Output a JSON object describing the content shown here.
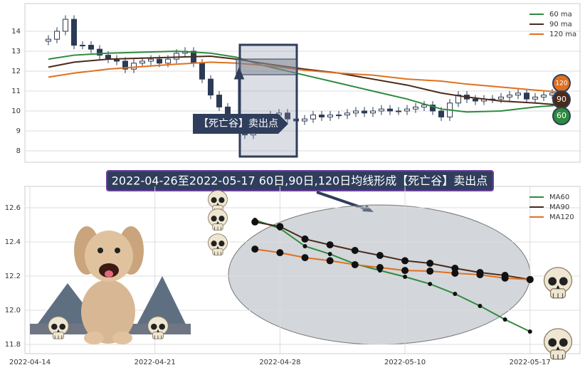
{
  "chart_data": [
    {
      "type": "candlestick",
      "xlim": [
        -2.75,
        62.25
      ],
      "ylim": [
        7.43,
        15.39
      ],
      "yticks": [
        8,
        9,
        10,
        11,
        12,
        13,
        14
      ],
      "grid": true,
      "legend": "upper right",
      "up_color": "#ffffff",
      "down_color": "#2b3a55",
      "open": [
        13.5,
        13.6,
        14.0,
        14.6,
        13.3,
        13.3,
        13.1,
        12.8,
        12.6,
        12.5,
        12.1,
        12.4,
        12.5,
        12.6,
        12.4,
        12.6,
        12.9,
        13.0,
        12.4,
        11.6,
        10.8,
        10.2,
        9.6,
        9.2,
        8.8,
        9.3,
        9.6,
        9.8,
        9.9,
        9.6,
        9.5,
        9.6,
        9.8,
        9.7,
        9.8,
        9.8,
        9.9,
        10.0,
        9.9,
        10.0,
        10.1,
        10.0,
        10.0,
        10.1,
        10.2,
        10.3,
        10.0,
        9.7,
        10.4,
        10.8,
        10.6,
        10.5,
        10.6,
        10.6,
        10.7,
        10.8,
        10.9,
        10.6,
        10.7,
        10.8
      ],
      "high": [
        13.8,
        14.2,
        14.8,
        14.8,
        13.5,
        13.5,
        13.3,
        13.0,
        12.8,
        12.7,
        12.6,
        12.7,
        12.8,
        12.8,
        12.8,
        13.1,
        13.2,
        13.2,
        12.6,
        11.8,
        11.0,
        10.4,
        9.8,
        9.4,
        9.5,
        9.8,
        10.0,
        10.1,
        10.1,
        9.8,
        9.8,
        10.0,
        10.0,
        10.0,
        10.0,
        10.1,
        10.2,
        10.2,
        10.2,
        10.3,
        10.3,
        10.2,
        10.3,
        10.4,
        10.5,
        10.5,
        10.2,
        10.6,
        11.0,
        11.0,
        10.8,
        10.8,
        10.8,
        10.9,
        11.0,
        11.1,
        11.1,
        10.9,
        11.0,
        11.1
      ],
      "low": [
        13.3,
        13.4,
        13.8,
        13.1,
        13.1,
        12.9,
        12.6,
        12.4,
        12.3,
        11.9,
        11.9,
        12.2,
        12.3,
        12.2,
        12.2,
        12.4,
        12.7,
        12.2,
        11.4,
        10.6,
        10.0,
        9.4,
        9.0,
        8.6,
        8.6,
        9.1,
        9.4,
        9.6,
        9.4,
        9.3,
        9.3,
        9.4,
        9.5,
        9.5,
        9.6,
        9.6,
        9.7,
        9.7,
        9.7,
        9.8,
        9.8,
        9.8,
        9.8,
        9.9,
        10.0,
        9.8,
        9.5,
        9.5,
        10.2,
        10.4,
        10.3,
        10.3,
        10.4,
        10.4,
        10.5,
        10.6,
        10.4,
        10.4,
        10.5,
        10.6
      ],
      "close": [
        13.6,
        14.0,
        14.6,
        13.3,
        13.3,
        13.1,
        12.8,
        12.6,
        12.5,
        12.1,
        12.4,
        12.5,
        12.6,
        12.4,
        12.6,
        12.9,
        13.0,
        12.4,
        11.6,
        10.8,
        10.2,
        9.6,
        9.2,
        8.8,
        9.3,
        9.6,
        9.8,
        9.9,
        9.6,
        9.5,
        9.6,
        9.8,
        9.7,
        9.8,
        9.8,
        9.9,
        10.0,
        9.9,
        10.0,
        10.1,
        10.0,
        10.0,
        10.1,
        10.2,
        10.3,
        10.0,
        9.7,
        10.4,
        10.8,
        10.6,
        10.5,
        10.6,
        10.6,
        10.7,
        10.8,
        10.9,
        10.6,
        10.7,
        10.8,
        10.9
      ],
      "series": [
        {
          "name": "60 ma",
          "color": "#2e8b3e",
          "x": [
            0,
            3,
            7,
            15,
            19,
            22,
            25,
            30,
            34,
            38,
            42,
            46,
            49,
            53,
            57,
            60
          ],
          "values": [
            12.6,
            12.8,
            12.9,
            13.0,
            12.9,
            12.7,
            12.3,
            11.8,
            11.4,
            11.0,
            10.6,
            10.1,
            9.95,
            10.0,
            10.2,
            10.3
          ]
        },
        {
          "name": "90 ma",
          "color": "#4a2a1a",
          "x": [
            0,
            3,
            7,
            15,
            19,
            22,
            25,
            30,
            34,
            38,
            42,
            46,
            49,
            53,
            57,
            60
          ],
          "values": [
            12.2,
            12.45,
            12.6,
            12.7,
            12.75,
            12.6,
            12.4,
            12.1,
            11.9,
            11.6,
            11.3,
            10.9,
            10.7,
            10.5,
            10.4,
            10.3
          ]
        },
        {
          "name": "120 ma",
          "color": "#e07020",
          "x": [
            0,
            3,
            7,
            15,
            19,
            22,
            25,
            30,
            34,
            38,
            42,
            46,
            49,
            53,
            57,
            60
          ],
          "values": [
            11.7,
            11.9,
            12.1,
            12.35,
            12.45,
            12.4,
            12.3,
            12.05,
            11.9,
            11.8,
            11.6,
            11.5,
            11.35,
            11.2,
            11.05,
            10.95
          ]
        }
      ],
      "annotation": "【死亡谷】卖出点",
      "badges": [
        {
          "label": "120",
          "color": "#e07020"
        },
        {
          "label": "90",
          "color": "#4a2a1a"
        },
        {
          "label": "60",
          "color": "#2e8b3e"
        }
      ]
    },
    {
      "type": "line",
      "xlim": [
        -0.2,
        22
      ],
      "ylim": [
        11.746,
        12.725
      ],
      "xticks": [
        {
          "value": 0,
          "label": "2022-04-14"
        },
        {
          "value": 5,
          "label": "2022-04-21"
        },
        {
          "value": 10,
          "label": "2022-04-28"
        },
        {
          "value": 15,
          "label": "2022-05-10"
        },
        {
          "value": 20,
          "label": "2022-05-17"
        }
      ],
      "yticks": [
        11.8,
        {
          "value": 12,
          "label": "12.0"
        },
        12.2,
        12.4,
        12.6
      ],
      "grid": true,
      "legend": "upper right",
      "x": [
        9,
        10,
        11,
        12,
        13,
        14,
        15,
        16,
        17,
        18,
        19,
        20
      ],
      "series": [
        {
          "name": "MA60",
          "color": "#2e8b3e",
          "marker_size": 3,
          "values": [
            12.529,
            12.479,
            12.375,
            12.329,
            12.271,
            12.233,
            12.196,
            12.154,
            12.096,
            12.025,
            11.946,
            11.875
          ]
        },
        {
          "name": "MA90",
          "color": "#4a2a1a",
          "marker_size": 5,
          "values": [
            12.517,
            12.49,
            12.417,
            12.383,
            12.35,
            12.321,
            12.29,
            12.275,
            12.246,
            12.221,
            12.204,
            12.18
          ]
        },
        {
          "name": "MA120",
          "color": "#e07020",
          "marker_size": 5,
          "values": [
            12.358,
            12.337,
            12.308,
            12.29,
            12.267,
            12.25,
            12.233,
            12.229,
            12.217,
            12.208,
            12.188,
            12.18
          ]
        }
      ]
    }
  ],
  "banner": "2022-04-26至2022-05-17 60日,90日,120日均线形成【死亡谷】卖出点"
}
